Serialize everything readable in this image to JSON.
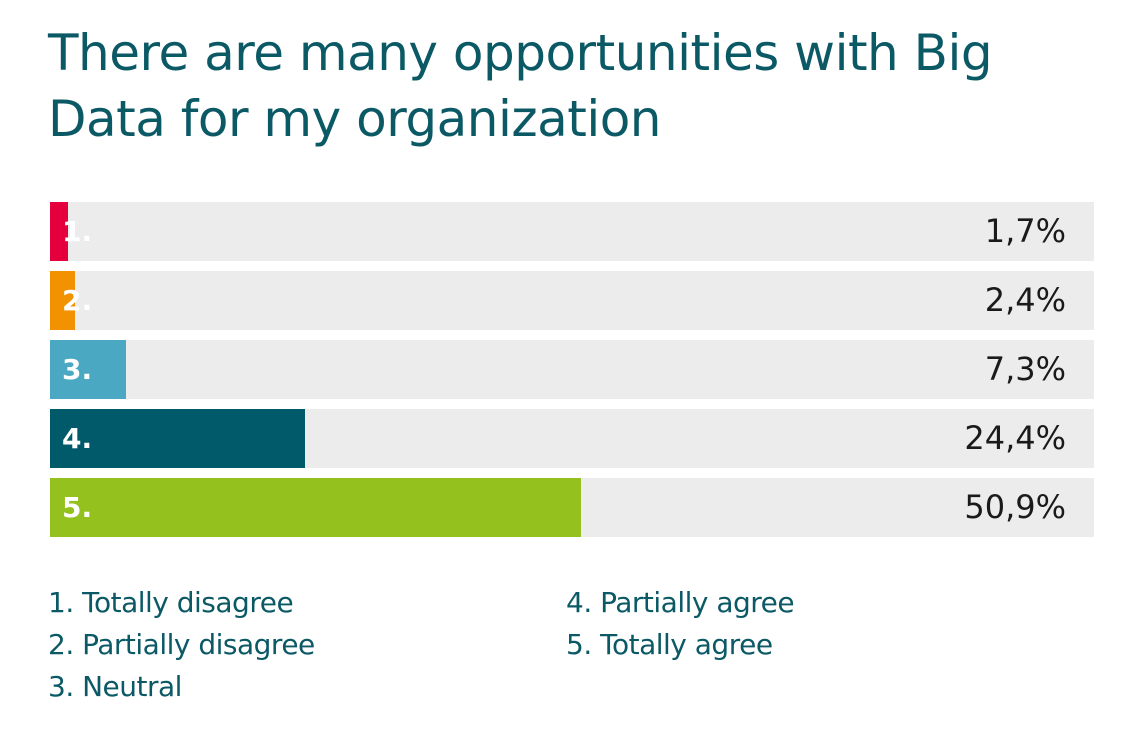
{
  "chart_data": {
    "type": "bar",
    "orientation": "horizontal",
    "title": "There are many opportunities with Big Data for my organization",
    "categories": [
      "1.",
      "2.",
      "3.",
      "4.",
      "5."
    ],
    "values": [
      1.7,
      2.4,
      7.3,
      24.4,
      50.9
    ],
    "value_labels": [
      "1,7%",
      "2,4%",
      "7,3%",
      "24,4%",
      "50,9%"
    ],
    "colors": [
      "#e5003d",
      "#f39200",
      "#4aa8c3",
      "#005a6a",
      "#95c11f"
    ],
    "xlim": [
      0,
      100
    ],
    "grid": false,
    "legend": {
      "placement": "bottom",
      "entries": [
        "1. Totally disagree",
        "2. Partially disagree",
        "3. Neutral",
        "4. Partially agree",
        "5. Totally agree"
      ]
    }
  }
}
